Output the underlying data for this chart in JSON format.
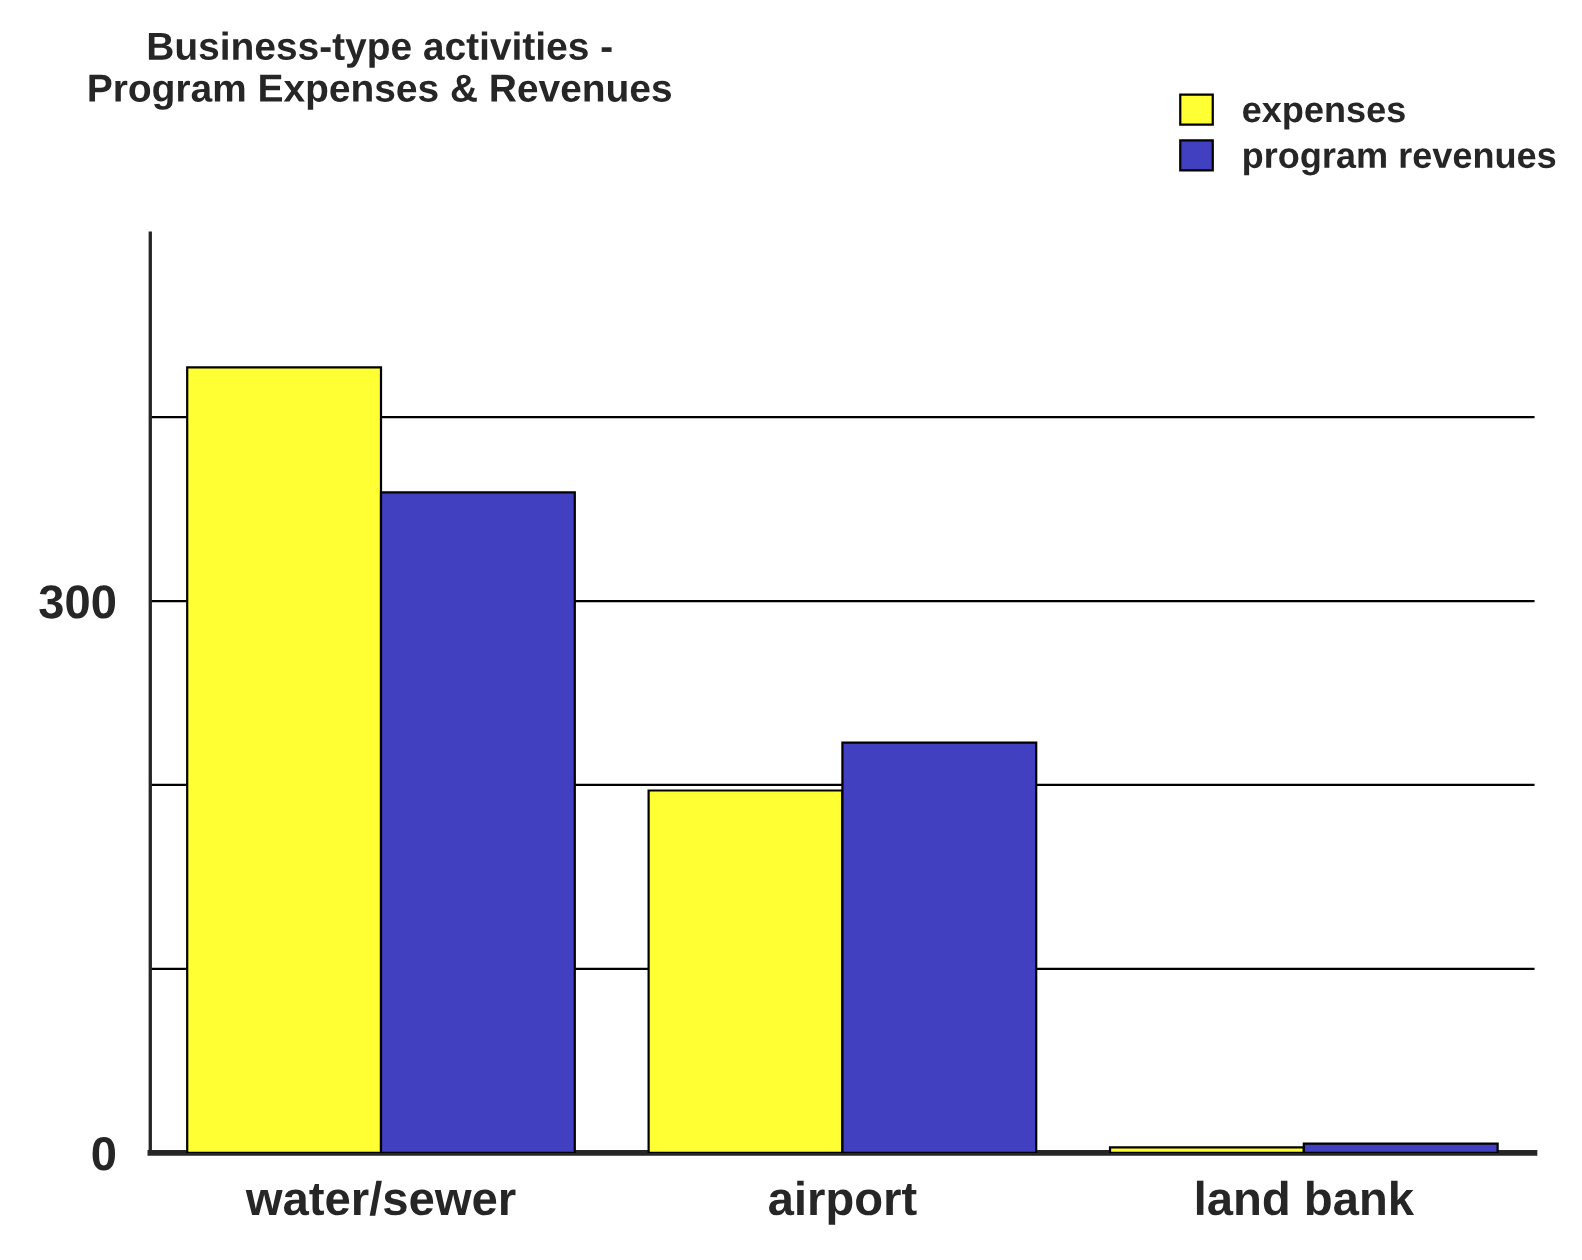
{
  "chart_data": {
    "type": "bar",
    "title": "Business-type activities -\nProgram Expenses & Revenues",
    "categories": [
      "water/sewer",
      "airport",
      "land bank"
    ],
    "series": [
      {
        "name": "expenses",
        "color": "#ffff33",
        "values": [
          427,
          197,
          3
        ]
      },
      {
        "name": "program revenues",
        "color": "#4040c0",
        "values": [
          359,
          223,
          5
        ]
      }
    ],
    "ylim": [
      0,
      500
    ],
    "yticks": [
      0,
      {
        "value": 100,
        "label": null
      },
      {
        "value": 200,
        "label": null
      },
      300,
      {
        "value": 400,
        "label": null
      }
    ],
    "grid": "y",
    "legend": "top right"
  }
}
